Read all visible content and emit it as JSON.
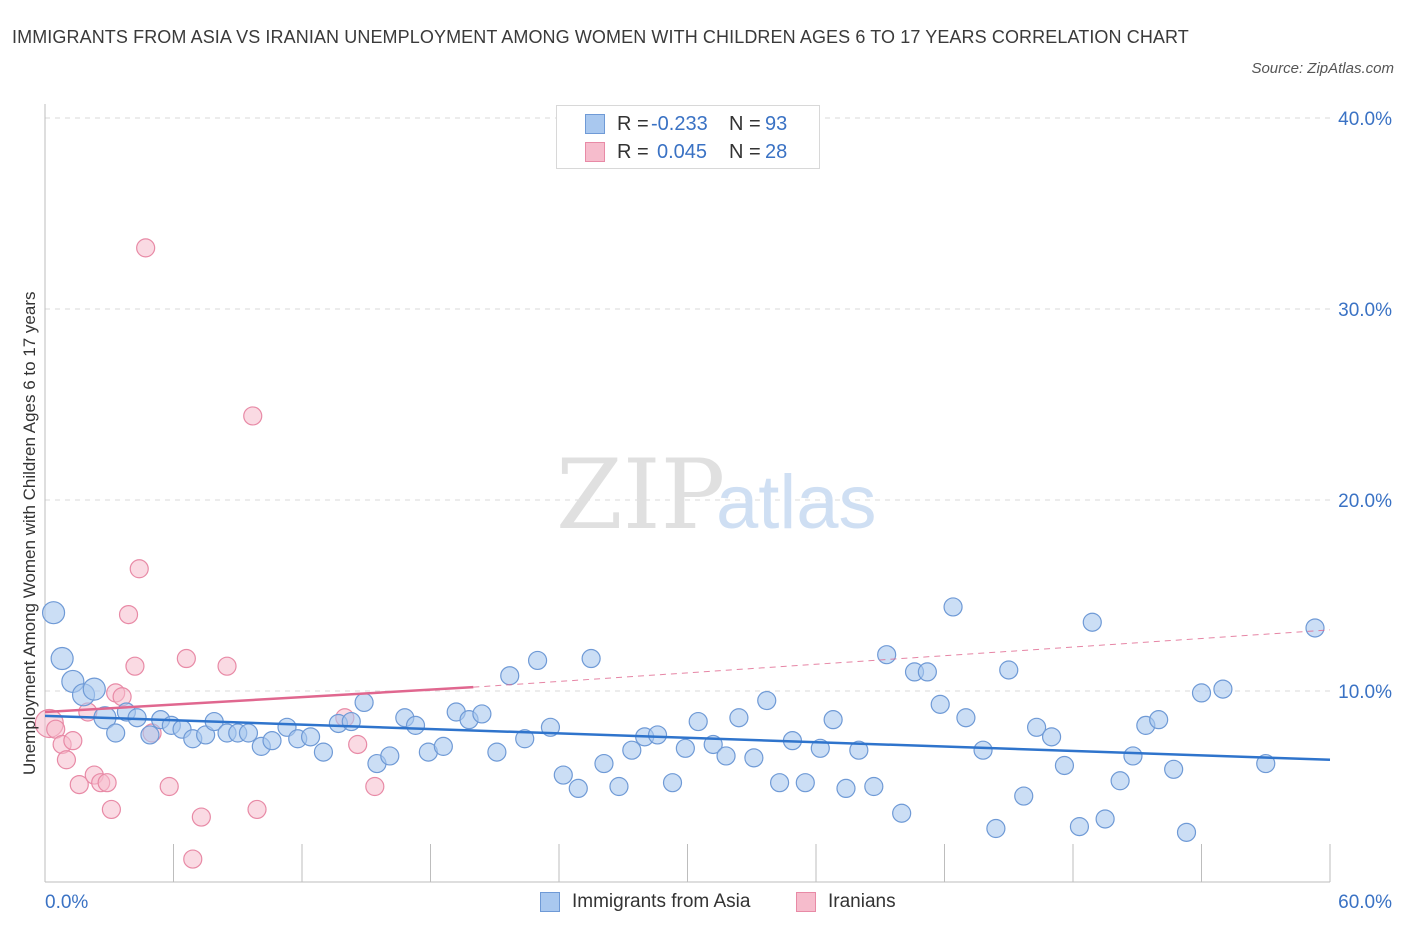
{
  "title": "IMMIGRANTS FROM ASIA VS IRANIAN UNEMPLOYMENT AMONG WOMEN WITH CHILDREN AGES 6 TO 17 YEARS CORRELATION CHART",
  "source": "Source: ZipAtlas.com",
  "watermark": {
    "zip": "ZIP",
    "atlas": "atlas"
  },
  "legend": {
    "r_label": "R =",
    "n_label": "N =",
    "rows": [
      {
        "r": "-0.233",
        "n": "93"
      },
      {
        "r": "0.045",
        "n": "28"
      }
    ]
  },
  "bottom_legend": {
    "asia": "Immigrants from Asia",
    "iran": "Iranians"
  },
  "colors": {
    "asia_fill": "#a9c8ef",
    "asia_stroke": "#6f9ad6",
    "asia_line": "#2f74cc",
    "iran_fill": "#f6bccc",
    "iran_stroke": "#e88aa6",
    "iran_line": "#e0678f",
    "axis_text": "#3a72c4",
    "grid": "#d9d9d9"
  },
  "chart_data": {
    "type": "scatter",
    "title": "IMMIGRANTS FROM ASIA VS IRANIAN UNEMPLOYMENT AMONG WOMEN WITH CHILDREN AGES 6 TO 17 YEARS CORRELATION CHART",
    "xlabel": "",
    "ylabel": "Unemployment Among Women with Children Ages 6 to 17 years",
    "xlim": [
      0,
      60
    ],
    "ylim": [
      0,
      40
    ],
    "x_tick_labels": [
      "0.0%",
      "60.0%"
    ],
    "y_ticks": [
      10,
      20,
      30,
      40
    ],
    "y_tick_labels": [
      "10.0%",
      "20.0%",
      "30.0%",
      "40.0%"
    ],
    "grid": true,
    "legend_position": "top-center",
    "series": [
      {
        "name": "Immigrants from Asia",
        "r": -0.233,
        "n": 93,
        "trend": {
          "x": [
            0,
            60
          ],
          "y": [
            8.7,
            6.4
          ]
        },
        "points": [
          [
            0.4,
            14.1
          ],
          [
            0.8,
            11.7
          ],
          [
            1.3,
            10.5
          ],
          [
            1.8,
            9.8
          ],
          [
            2.3,
            10.1
          ],
          [
            2.8,
            8.6
          ],
          [
            3.3,
            7.8
          ],
          [
            3.8,
            8.9
          ],
          [
            4.3,
            8.6
          ],
          [
            4.9,
            7.7
          ],
          [
            5.4,
            8.5
          ],
          [
            5.9,
            8.2
          ],
          [
            6.4,
            8.0
          ],
          [
            6.9,
            7.5
          ],
          [
            7.5,
            7.7
          ],
          [
            7.9,
            8.4
          ],
          [
            8.5,
            7.8
          ],
          [
            9.0,
            7.8
          ],
          [
            9.5,
            7.8
          ],
          [
            10.1,
            7.1
          ],
          [
            10.6,
            7.4
          ],
          [
            11.3,
            8.1
          ],
          [
            11.8,
            7.5
          ],
          [
            12.4,
            7.6
          ],
          [
            13.0,
            6.8
          ],
          [
            13.7,
            8.3
          ],
          [
            14.3,
            8.4
          ],
          [
            14.9,
            9.4
          ],
          [
            15.5,
            6.2
          ],
          [
            16.1,
            6.6
          ],
          [
            16.8,
            8.6
          ],
          [
            17.3,
            8.2
          ],
          [
            17.9,
            6.8
          ],
          [
            18.6,
            7.1
          ],
          [
            19.2,
            8.9
          ],
          [
            19.8,
            8.5
          ],
          [
            20.4,
            8.8
          ],
          [
            21.1,
            6.8
          ],
          [
            21.7,
            10.8
          ],
          [
            22.4,
            7.5
          ],
          [
            23.0,
            11.6
          ],
          [
            23.6,
            8.1
          ],
          [
            24.2,
            5.6
          ],
          [
            24.9,
            4.9
          ],
          [
            25.5,
            11.7
          ],
          [
            26.1,
            6.2
          ],
          [
            26.8,
            5.0
          ],
          [
            27.4,
            6.9
          ],
          [
            28.0,
            7.6
          ],
          [
            28.6,
            7.7
          ],
          [
            29.3,
            5.2
          ],
          [
            29.9,
            7.0
          ],
          [
            30.5,
            8.4
          ],
          [
            31.2,
            7.2
          ],
          [
            31.8,
            6.6
          ],
          [
            32.4,
            8.6
          ],
          [
            33.1,
            6.5
          ],
          [
            33.7,
            9.5
          ],
          [
            34.3,
            5.2
          ],
          [
            34.9,
            7.4
          ],
          [
            35.5,
            5.2
          ],
          [
            36.2,
            7.0
          ],
          [
            36.8,
            8.5
          ],
          [
            37.4,
            4.9
          ],
          [
            38.0,
            6.9
          ],
          [
            38.7,
            5.0
          ],
          [
            39.3,
            11.9
          ],
          [
            40.0,
            3.6
          ],
          [
            40.6,
            11.0
          ],
          [
            41.2,
            11.0
          ],
          [
            41.8,
            9.3
          ],
          [
            42.4,
            14.4
          ],
          [
            43.0,
            8.6
          ],
          [
            43.8,
            6.9
          ],
          [
            44.4,
            2.8
          ],
          [
            45.0,
            11.1
          ],
          [
            45.7,
            4.5
          ],
          [
            46.3,
            8.1
          ],
          [
            47.0,
            7.6
          ],
          [
            47.6,
            6.1
          ],
          [
            48.3,
            2.9
          ],
          [
            48.9,
            13.6
          ],
          [
            49.5,
            3.3
          ],
          [
            50.2,
            5.3
          ],
          [
            50.8,
            6.6
          ],
          [
            51.4,
            8.2
          ],
          [
            52.0,
            8.5
          ],
          [
            52.7,
            5.9
          ],
          [
            53.3,
            2.6
          ],
          [
            54.0,
            9.9
          ],
          [
            55.0,
            10.1
          ],
          [
            57.0,
            6.2
          ],
          [
            59.3,
            13.3
          ]
        ]
      },
      {
        "name": "Iranians",
        "r": 0.045,
        "n": 28,
        "trend": {
          "x": [
            0,
            20
          ],
          "y": [
            8.9,
            10.2
          ]
        },
        "trend_dashed": {
          "x": [
            20,
            60
          ],
          "y": [
            10.2,
            13.2
          ]
        },
        "points": [
          [
            0.2,
            8.3
          ],
          [
            0.5,
            8.0
          ],
          [
            0.8,
            7.2
          ],
          [
            1.0,
            6.4
          ],
          [
            1.3,
            7.4
          ],
          [
            1.6,
            5.1
          ],
          [
            2.0,
            8.9
          ],
          [
            2.3,
            5.6
          ],
          [
            2.6,
            5.2
          ],
          [
            2.9,
            5.2
          ],
          [
            3.1,
            3.8
          ],
          [
            3.3,
            9.9
          ],
          [
            3.6,
            9.7
          ],
          [
            3.9,
            14.0
          ],
          [
            4.2,
            11.3
          ],
          [
            4.4,
            16.4
          ],
          [
            4.7,
            33.2
          ],
          [
            5.0,
            7.8
          ],
          [
            5.8,
            5.0
          ],
          [
            6.6,
            11.7
          ],
          [
            6.9,
            1.2
          ],
          [
            7.3,
            3.4
          ],
          [
            8.5,
            11.3
          ],
          [
            9.7,
            24.4
          ],
          [
            9.9,
            3.8
          ],
          [
            14.6,
            7.2
          ],
          [
            15.4,
            5.0
          ],
          [
            14.0,
            8.6
          ]
        ]
      }
    ]
  }
}
